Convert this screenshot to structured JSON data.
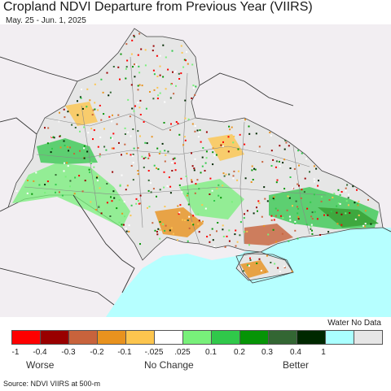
{
  "title": "Cropland NDVI Departure from Previous Year (VIIRS)",
  "subtitle": "May. 25 - Jun. 1, 2025",
  "source": "Source: NDVI VIIRS at 500-m",
  "legend": {
    "colors": [
      "#fe0000",
      "#990000",
      "#c8633c",
      "#e8921e",
      "#fcc54e",
      "#ffffff",
      "#78f07a",
      "#30c84a",
      "#069406",
      "#336633",
      "#002800"
    ],
    "extra_colors": [
      "#aaffff",
      "#e6e6e6"
    ],
    "ticks": [
      "-1",
      "-0.4",
      "-0.3",
      "-0.2",
      "-0.1",
      "-.025",
      ".025",
      "0.1",
      "0.2",
      "0.3",
      "0.4",
      "1"
    ],
    "categories": {
      "worse": "Worse",
      "no_change": "No Change",
      "better": "Better"
    },
    "water_no_data": "Water No Data"
  }
}
